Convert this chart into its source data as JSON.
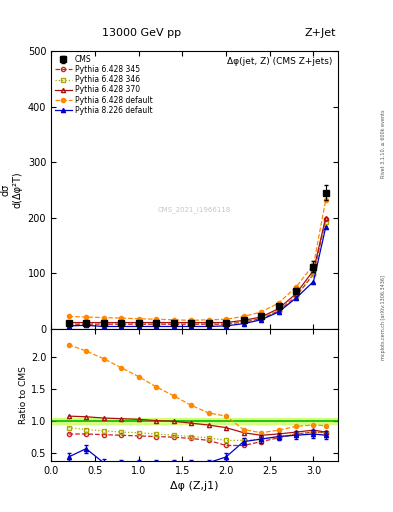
{
  "title_top": "13000 GeV pp",
  "title_right": "Z+Jet",
  "subtitle": "Δφ(jet, Z) (CMS Z+jets)",
  "xlabel": "Δφ (Z,j1)",
  "ylabel_main": "dσ/d(Δφ²T)",
  "ylabel_ratio": "Ratio to CMS",
  "watermark": "CMS_2021_I1966118",
  "right_label_top": "Rivet 3.1.10, ≥ 600k events",
  "right_label_bot": "mcplots.cern.ch [arXiv:1306.3436]",
  "x_pts": [
    0.2,
    0.4,
    0.6,
    0.8,
    1.0,
    1.2,
    1.4,
    1.6,
    1.8,
    2.0,
    2.2,
    2.4,
    2.6,
    2.8,
    3.0,
    3.14
  ],
  "cms_y": [
    10,
    10,
    10,
    10,
    10,
    10,
    10,
    10,
    10,
    10,
    15,
    22,
    40,
    68,
    112,
    245
  ],
  "cms_yerr": [
    1,
    1,
    1,
    1,
    1,
    1,
    1,
    1,
    1,
    1,
    2,
    3,
    4,
    6,
    10,
    14
  ],
  "p345_y": [
    8,
    8,
    8,
    8,
    8,
    8,
    8,
    8,
    8,
    8,
    12,
    18,
    32,
    58,
    98,
    198
  ],
  "p346_y": [
    9,
    9,
    9,
    9,
    9,
    9,
    9,
    9,
    9,
    9,
    13,
    19,
    33,
    59,
    99,
    193
  ],
  "p370_y": [
    11,
    11,
    11,
    11,
    11,
    11,
    11,
    11,
    11,
    11,
    15,
    21,
    36,
    63,
    105,
    200
  ],
  "p_def_y": [
    22,
    21,
    20,
    19,
    18,
    17,
    16,
    15,
    16,
    17,
    22,
    30,
    46,
    75,
    115,
    232
  ],
  "p8def_y": [
    5,
    6,
    4,
    4,
    4,
    4,
    4,
    4,
    4,
    5,
    9,
    16,
    30,
    55,
    85,
    183
  ],
  "r345_y": [
    0.8,
    0.8,
    0.79,
    0.78,
    0.77,
    0.76,
    0.75,
    0.73,
    0.7,
    0.62,
    0.62,
    0.68,
    0.74,
    0.8,
    0.83,
    0.82
  ],
  "r346_y": [
    0.9,
    0.87,
    0.85,
    0.83,
    0.82,
    0.8,
    0.78,
    0.76,
    0.74,
    0.7,
    0.7,
    0.72,
    0.76,
    0.8,
    0.83,
    0.82
  ],
  "r370_y": [
    1.08,
    1.07,
    1.05,
    1.04,
    1.03,
    1.01,
    1.0,
    0.97,
    0.94,
    0.9,
    0.82,
    0.78,
    0.8,
    0.83,
    0.86,
    0.83
  ],
  "r_def_y": [
    2.2,
    2.1,
    1.98,
    1.84,
    1.7,
    1.54,
    1.4,
    1.25,
    1.13,
    1.08,
    0.87,
    0.82,
    0.86,
    0.92,
    0.94,
    0.93
  ],
  "r8def_y": [
    0.44,
    0.57,
    0.35,
    0.35,
    0.35,
    0.35,
    0.35,
    0.35,
    0.35,
    0.44,
    0.68,
    0.72,
    0.76,
    0.78,
    0.8,
    0.78
  ],
  "r8def_yerr": [
    0.07,
    0.06,
    0.06,
    0.05,
    0.05,
    0.05,
    0.05,
    0.05,
    0.05,
    0.06,
    0.06,
    0.06,
    0.06,
    0.06,
    0.06,
    0.06
  ],
  "color_cms": "#000000",
  "color_345": "#cc2222",
  "color_346": "#aaaa00",
  "color_370": "#aa1111",
  "color_def": "#ff8800",
  "color_8def": "#0000cc",
  "color_ref_line": "#00bb00",
  "color_ref_band": "#ccff66",
  "ylim_main": [
    0,
    500
  ],
  "ylim_ratio": [
    0.38,
    2.45
  ],
  "xlim": [
    0.0,
    3.28
  ],
  "yticks_main": [
    0,
    100,
    200,
    300,
    400,
    500
  ],
  "yticks_ratio": [
    0.5,
    1.0,
    1.5,
    2.0
  ]
}
